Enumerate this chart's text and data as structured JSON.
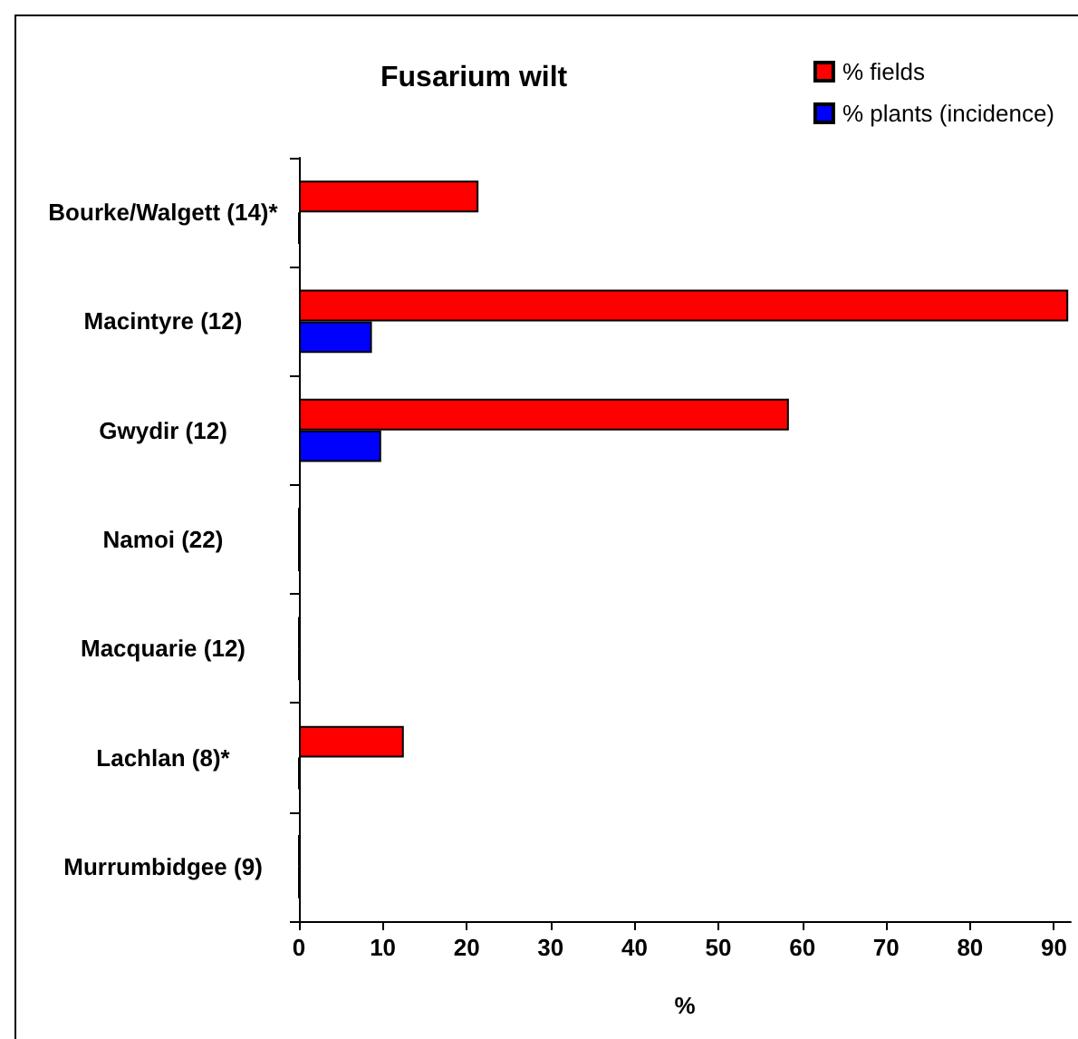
{
  "chart_data": {
    "type": "bar",
    "orientation": "horizontal",
    "title": "Fusarium wilt",
    "xlabel": "%",
    "categories": [
      "Bourke/Walgett (14)*",
      "Macintyre (12)",
      "Gwydir (12)",
      "Namoi (22)",
      "Macquarie (12)",
      "Lachlan (8)*",
      "Murrumbidgee (9)"
    ],
    "series": [
      {
        "name": "% fields",
        "color": "#ff0000",
        "values": [
          21.4,
          91.7,
          58.4,
          0,
          0,
          12.5,
          0
        ]
      },
      {
        "name": "% plants (incidence)",
        "color": "#0000ff",
        "values": [
          0,
          8.7,
          9.8,
          0,
          0,
          0,
          0
        ]
      }
    ],
    "xlim": [
      0,
      92
    ],
    "xticks": [
      0,
      10,
      20,
      30,
      40,
      50,
      60,
      70,
      80,
      90
    ],
    "grid": false,
    "legend": "top right"
  }
}
